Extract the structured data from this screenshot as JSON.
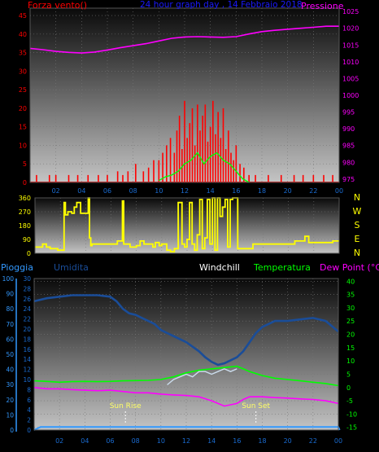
{
  "title": "24 hour graph day , 14 Febbraio 2018",
  "x_ticks": [
    "02",
    "04",
    "06",
    "08",
    "10",
    "12",
    "14",
    "16",
    "18",
    "20",
    "22",
    "00"
  ],
  "colors": {
    "wind_speed": "#ff0000",
    "wind_gust_avg": "#00ff00",
    "pressure": "#ff00ff",
    "direction": "#ffff00",
    "humidity": "#1a4d99",
    "windchill": "#ccddee",
    "temperature": "#00ff00",
    "dew_point": "#ff00ff",
    "rain": "#3399ff",
    "sun_label": "#ffff66"
  },
  "chart_data": [
    {
      "type": "line",
      "name": "wind-pressure",
      "title": "24 hour graph day , 14 Febbraio 2018",
      "ylabel_left": "Forza vento()",
      "ylabel_right": "Pressione",
      "left_ticks": [
        "0",
        "5",
        "10",
        "15",
        "20",
        "25",
        "30",
        "35",
        "40",
        "45"
      ],
      "right_ticks": [
        "975",
        "980",
        "985",
        "990",
        "995",
        "1000",
        "1005",
        "1010",
        "1015",
        "1020",
        "1025"
      ],
      "ylim_left": [
        0,
        47
      ],
      "ylim_right": [
        974,
        1026
      ],
      "pressure": {
        "x": [
          0,
          1,
          2,
          3,
          4,
          5,
          6,
          7,
          8,
          9,
          10,
          11,
          12,
          13,
          14,
          15,
          16,
          17,
          18,
          19,
          20,
          21,
          22,
          23,
          24
        ],
        "y": [
          1014,
          1013.6,
          1013.1,
          1012.8,
          1012.6,
          1012.9,
          1013.5,
          1014.2,
          1014.8,
          1015.4,
          1016.2,
          1017,
          1017.4,
          1017.5,
          1017.4,
          1017.3,
          1017.5,
          1018.3,
          1019,
          1019.4,
          1019.7,
          1020,
          1020.3,
          1020.6,
          1020.6
        ]
      },
      "wind_gust_avg": {
        "x": [
          10,
          10.5,
          11,
          11.5,
          12,
          12.5,
          13,
          13.5,
          14,
          14.5,
          15,
          15.5,
          16,
          16.5,
          17
        ],
        "y": [
          0.5,
          1.5,
          2,
          3,
          5,
          6,
          8,
          5,
          7,
          8,
          6,
          5,
          3,
          1,
          0
        ]
      },
      "wind_speed_peaks": {
        "x": [
          0.5,
          1.5,
          2,
          3,
          3.7,
          4.5,
          5.3,
          6,
          6.8,
          7.2,
          7.6,
          8.2,
          8.8,
          9.2,
          9.6,
          10,
          10.3,
          10.6,
          10.9,
          11.2,
          11.4,
          11.6,
          11.8,
          12,
          12.2,
          12.4,
          12.6,
          12.8,
          13,
          13.2,
          13.4,
          13.6,
          13.8,
          14,
          14.2,
          14.4,
          14.6,
          14.8,
          15,
          15.2,
          15.4,
          15.6,
          15.8,
          16,
          16.3,
          16.6,
          17,
          17.5,
          18.5,
          19.5,
          20.5,
          21.2,
          22,
          22.8,
          23.5
        ],
        "y": [
          2,
          2,
          2,
          2,
          2,
          2,
          2,
          2,
          3,
          2,
          3,
          5,
          3,
          4,
          6,
          6,
          8,
          10,
          12,
          8,
          14,
          18,
          9,
          22,
          12,
          16,
          20,
          10,
          21,
          14,
          18,
          21,
          11,
          15,
          22,
          13,
          19,
          12,
          20,
          9,
          14,
          8,
          6,
          10,
          5,
          4,
          2,
          2,
          2,
          2,
          2,
          2,
          2,
          2,
          2
        ]
      }
    },
    {
      "type": "line",
      "name": "wind-direction",
      "left_ticks": [
        "0",
        "90",
        "180",
        "270",
        "360"
      ],
      "compass": [
        "N",
        "W",
        "S",
        "E",
        "N"
      ],
      "ylim": [
        0,
        360
      ],
      "series": {
        "x": [
          0,
          0.2,
          0.6,
          0.9,
          1.2,
          1.5,
          1.8,
          2.2,
          2.3,
          2.4,
          2.6,
          2.9,
          3.1,
          3.3,
          3.6,
          4,
          4.2,
          4.3,
          4.4,
          4.5,
          5,
          5.5,
          6,
          6.5,
          6.9,
          7,
          7.2,
          7.5,
          8,
          8.3,
          8.6,
          9,
          9.3,
          9.5,
          9.8,
          10,
          10.4,
          10.7,
          11,
          11.3,
          11.6,
          11.8,
          12,
          12.2,
          12.4,
          12.6,
          12.8,
          13,
          13.2,
          13.4,
          13.6,
          13.8,
          14,
          14.2,
          14.4,
          14.6,
          14.8,
          15,
          15.2,
          15.4,
          15.6,
          15.8,
          16,
          16.4,
          16.8,
          17.2,
          17.6,
          18,
          18.5,
          19,
          19.5,
          20,
          20.5,
          21,
          21.3,
          21.6,
          22,
          22.5,
          23,
          23.5,
          24
        ],
        "y": [
          40,
          40,
          60,
          40,
          30,
          30,
          20,
          20,
          330,
          250,
          270,
          260,
          300,
          330,
          260,
          260,
          360,
          100,
          50,
          60,
          60,
          60,
          60,
          80,
          340,
          60,
          60,
          40,
          50,
          80,
          60,
          60,
          40,
          70,
          50,
          60,
          20,
          10,
          30,
          330,
          60,
          40,
          90,
          330,
          60,
          20,
          120,
          350,
          30,
          100,
          350,
          60,
          360,
          20,
          360,
          240,
          300,
          350,
          40,
          350,
          360,
          360,
          30,
          30,
          30,
          60,
          60,
          60,
          60,
          60,
          60,
          60,
          80,
          80,
          110,
          70,
          70,
          70,
          70,
          80,
          80
        ]
      }
    },
    {
      "type": "line",
      "name": "temperature-humidity",
      "labels": {
        "rain": "Pioggia",
        "humidity": "Umidita",
        "windchill": "Windchill",
        "temperature": "Temperatura",
        "dew_point": "Dew Point (°C)"
      },
      "rain_ticks": [
        "0",
        "10",
        "20",
        "30",
        "40",
        "50",
        "60",
        "70",
        "80",
        "90",
        "100"
      ],
      "humidity_ticks": [
        "0",
        "2",
        "4",
        "6",
        "8",
        "10",
        "12",
        "14",
        "16",
        "18",
        "20",
        "22",
        "24",
        "26",
        "28",
        "30"
      ],
      "temp_ticks": [
        "-15",
        "-10",
        "-5",
        "0",
        "5",
        "10",
        "15",
        "20",
        "25",
        "30",
        "35",
        "40"
      ],
      "ylim_temp": [
        -16,
        41
      ],
      "ylim_rain": [
        0,
        100
      ],
      "sunrise_label": "Sun Rise",
      "sunset_label": "Sun Set",
      "sunrise_hour": 7.2,
      "sunset_hour": 17.5,
      "temperature": {
        "x": [
          0,
          1,
          2,
          3,
          4,
          5,
          6,
          7,
          8,
          9,
          10,
          11,
          12,
          13,
          14,
          15,
          16,
          16.5,
          17,
          18,
          19,
          20,
          21,
          22,
          23,
          24
        ],
        "y": [
          2.5,
          2.3,
          2,
          2.2,
          2.3,
          2.2,
          2.3,
          2.5,
          2.6,
          2.7,
          3,
          4,
          5.5,
          6.5,
          7,
          7.5,
          8,
          7,
          6,
          4.5,
          3.5,
          3,
          2.5,
          2,
          1.5,
          0.7
        ]
      },
      "windchill": {
        "x": [
          10.5,
          11,
          11.5,
          12,
          12.5,
          13,
          13.5,
          14,
          14.5,
          15,
          15.5,
          16
        ],
        "y": [
          1,
          3,
          4,
          5,
          4,
          6,
          6,
          5,
          6,
          7,
          6,
          7
        ]
      },
      "dew_point": {
        "x": [
          0,
          1,
          2,
          3,
          4,
          5,
          6,
          7,
          8,
          9,
          10,
          11,
          12,
          13,
          14,
          15,
          16,
          16.5,
          17,
          18,
          19,
          20,
          21,
          22,
          23,
          24
        ],
        "y": [
          0,
          -0.5,
          -0.5,
          -0.8,
          -1,
          -1.2,
          -1,
          -1.5,
          -2,
          -2,
          -2.5,
          -2.8,
          -3,
          -3.5,
          -5,
          -7,
          -6,
          -4.5,
          -3.5,
          -3.5,
          -3.8,
          -4,
          -4.3,
          -4.5,
          -5,
          -6
        ]
      },
      "humidity": {
        "x": [
          0,
          1,
          2,
          3,
          4,
          5,
          6,
          6.5,
          7,
          7.5,
          8,
          8.5,
          9,
          9.5,
          10,
          10.5,
          11,
          11.5,
          12,
          12.5,
          13,
          13.5,
          14,
          14.5,
          15,
          15.5,
          16,
          16.5,
          17,
          17.5,
          18,
          18.5,
          19,
          20,
          21,
          22,
          23,
          24
        ],
        "y": [
          85,
          87,
          88,
          89,
          89,
          89,
          88,
          85,
          80,
          77,
          76,
          74,
          72,
          70,
          66,
          64,
          62,
          60,
          58,
          55,
          52,
          48,
          45,
          43,
          44,
          46,
          48,
          52,
          58,
          64,
          68,
          70,
          72,
          72,
          73,
          74,
          72,
          65
        ]
      },
      "rain": {
        "x": [
          0,
          0.5,
          1,
          24,
          24.1
        ],
        "y": [
          0,
          2,
          2,
          2,
          0
        ]
      }
    }
  ]
}
